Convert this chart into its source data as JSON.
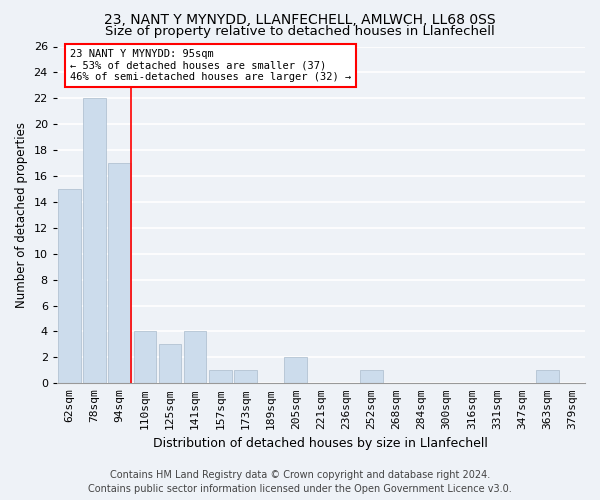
{
  "title1": "23, NANT Y MYNYDD, LLANFECHELL, AMLWCH, LL68 0SS",
  "title2": "Size of property relative to detached houses in Llanfechell",
  "xlabel": "Distribution of detached houses by size in Llanfechell",
  "ylabel": "Number of detached properties",
  "categories": [
    "62sqm",
    "78sqm",
    "94sqm",
    "110sqm",
    "125sqm",
    "141sqm",
    "157sqm",
    "173sqm",
    "189sqm",
    "205sqm",
    "221sqm",
    "236sqm",
    "252sqm",
    "268sqm",
    "284sqm",
    "300sqm",
    "316sqm",
    "331sqm",
    "347sqm",
    "363sqm",
    "379sqm"
  ],
  "values": [
    15,
    22,
    17,
    4,
    3,
    4,
    1,
    1,
    0,
    2,
    0,
    0,
    1,
    0,
    0,
    0,
    0,
    0,
    0,
    1,
    0
  ],
  "bar_color": "#ccdcec",
  "bar_edge_color": "#aabccc",
  "red_line_x": 2,
  "annotation_line1": "23 NANT Y MYNYDD: 95sqm",
  "annotation_line2": "← 53% of detached houses are smaller (37)",
  "annotation_line3": "46% of semi-detached houses are larger (32) →",
  "annotation_box_color": "white",
  "annotation_box_edge": "red",
  "ylim": [
    0,
    26
  ],
  "yticks": [
    0,
    2,
    4,
    6,
    8,
    10,
    12,
    14,
    16,
    18,
    20,
    22,
    24,
    26
  ],
  "footer_line1": "Contains HM Land Registry data © Crown copyright and database right 2024.",
  "footer_line2": "Contains public sector information licensed under the Open Government Licence v3.0.",
  "background_color": "#eef2f7",
  "grid_color": "white",
  "title1_fontsize": 10,
  "title2_fontsize": 9.5,
  "xlabel_fontsize": 9,
  "ylabel_fontsize": 8.5,
  "tick_fontsize": 8,
  "footer_fontsize": 7
}
